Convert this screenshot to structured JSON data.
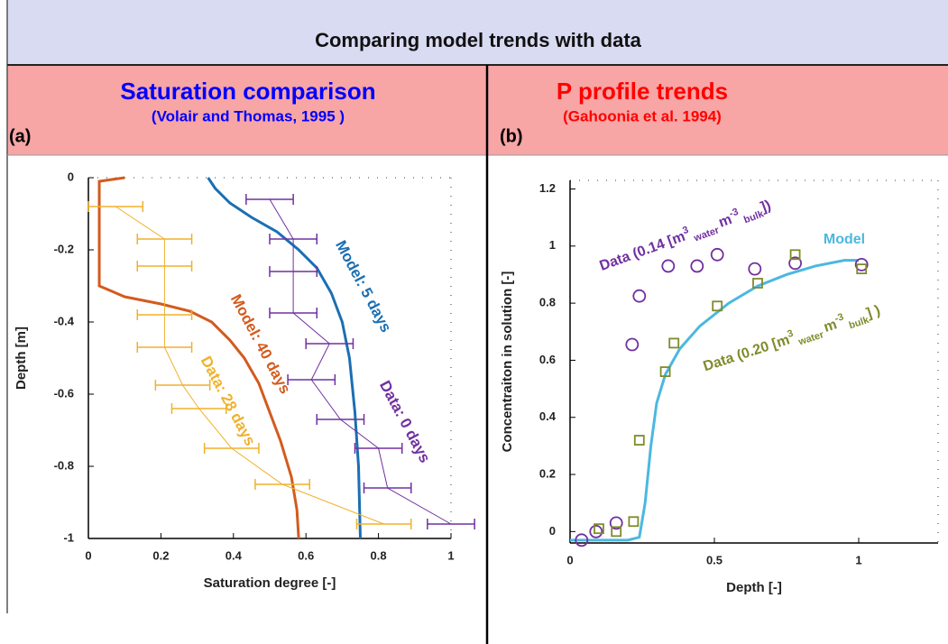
{
  "title": "Comparing model trends with data",
  "panels": [
    {
      "title": "Saturation comparison",
      "subtitle": "(Volair and Thomas, 1995 )",
      "tag": "(a)"
    },
    {
      "title": "P profile trends",
      "subtitle": "(Gahoonia et al. 1994)",
      "tag": "(b)"
    }
  ],
  "chart_data": [
    {
      "type": "line",
      "xlabel": "Saturation degree [-]",
      "ylabel": "Depth [m]",
      "xlim": [
        0,
        1
      ],
      "ylim": [
        -1,
        0
      ],
      "xticks": [
        0,
        0.2,
        0.4,
        0.6,
        0.8,
        1
      ],
      "yticks": [
        0,
        -0.2,
        -0.4,
        -0.6,
        -0.8,
        -1
      ],
      "series": [
        {
          "name": "Model: 40 days",
          "color": "#d35b1e",
          "line_width": 3,
          "x": [
            0.1,
            0.03,
            0.03,
            0.03,
            0.1,
            0.2,
            0.28,
            0.34,
            0.39,
            0.43,
            0.47,
            0.5,
            0.53,
            0.56,
            0.575,
            0.58
          ],
          "values": [
            0,
            -0.01,
            -0.15,
            -0.3,
            -0.33,
            -0.35,
            -0.37,
            -0.4,
            -0.45,
            -0.5,
            -0.57,
            -0.65,
            -0.73,
            -0.83,
            -0.92,
            -1.0
          ]
        },
        {
          "name": "Model: 5 days",
          "color": "#1b6fb3",
          "line_width": 3,
          "x": [
            0.33,
            0.35,
            0.39,
            0.45,
            0.52,
            0.58,
            0.63,
            0.67,
            0.7,
            0.72,
            0.735,
            0.745,
            0.75
          ],
          "values": [
            0,
            -0.03,
            -0.07,
            -0.11,
            -0.15,
            -0.2,
            -0.25,
            -0.32,
            -0.4,
            -0.5,
            -0.65,
            -0.8,
            -1.0
          ]
        },
        {
          "name": "Data: 28 days",
          "color": "#f0b12b",
          "line_width": 1,
          "x": [
            0.075,
            0.21,
            0.21,
            0.21,
            0.21,
            0.26,
            0.305,
            0.395,
            0.535,
            0.815
          ],
          "x_error": [
            0.075,
            0.075,
            0.075,
            0.075,
            0.075,
            0.075,
            0.075,
            0.075,
            0.075,
            0.075
          ],
          "values": [
            -0.08,
            -0.17,
            -0.245,
            -0.38,
            -0.47,
            -0.575,
            -0.64,
            -0.75,
            -0.85,
            -0.96
          ]
        },
        {
          "name": "Data: 0 days",
          "color": "#7030a0",
          "line_width": 1,
          "x": [
            0.5,
            0.565,
            0.565,
            0.565,
            0.665,
            0.615,
            0.695,
            0.8,
            0.825,
            1.0
          ],
          "x_error": [
            0.065,
            0.065,
            0.065,
            0.065,
            0.065,
            0.065,
            0.065,
            0.065,
            0.065,
            0.065
          ],
          "values": [
            -0.06,
            -0.17,
            -0.26,
            -0.375,
            -0.46,
            -0.56,
            -0.67,
            -0.75,
            -0.86,
            -0.96
          ]
        }
      ]
    },
    {
      "type": "line",
      "xlabel": "Depth [-]",
      "ylabel": "Concentraiton in solution [-]",
      "xlim": [
        0,
        1.275
      ],
      "ylim": [
        -0.04,
        1.23
      ],
      "xticks": [
        0,
        0.5,
        1
      ],
      "yticks": [
        0,
        0.2,
        0.4,
        0.6,
        0.8,
        1,
        1.2
      ],
      "series": [
        {
          "name": "Model",
          "color": "#4bb8e0",
          "line_width": 3,
          "x": [
            0,
            0.2,
            0.24,
            0.26,
            0.28,
            0.3,
            0.33,
            0.38,
            0.45,
            0.55,
            0.65,
            0.75,
            0.85,
            0.95,
            1.0
          ],
          "values": [
            -0.03,
            -0.03,
            -0.02,
            0.1,
            0.3,
            0.45,
            0.55,
            0.64,
            0.72,
            0.8,
            0.86,
            0.9,
            0.93,
            0.95,
            0.95
          ]
        },
        {
          "name_parts": [
            "Data (0.14 [m",
            "3",
            "water",
            "m",
            "-3",
            "bulk",
            "])"
          ],
          "color": "#7030a0",
          "line_width": 0,
          "marker": "circle",
          "x": [
            0.04,
            0.09,
            0.16,
            0.215,
            0.24,
            0.34,
            0.44,
            0.51,
            0.64,
            0.78,
            1.01
          ],
          "values": [
            -0.03,
            0.0,
            0.03,
            0.655,
            0.825,
            0.93,
            0.93,
            0.97,
            0.92,
            0.94,
            0.935
          ]
        },
        {
          "name_parts": [
            "Data (0.20 [m",
            "3",
            "water",
            "m",
            "-3",
            "bulk",
            "] )"
          ],
          "color": "#7f8b2a",
          "line_width": 0,
          "marker": "square",
          "x": [
            0.1,
            0.16,
            0.22,
            0.24,
            0.33,
            0.36,
            0.51,
            0.65,
            0.78,
            1.01
          ],
          "values": [
            0.01,
            0.0,
            0.035,
            0.32,
            0.56,
            0.66,
            0.79,
            0.87,
            0.97,
            0.92
          ]
        }
      ]
    }
  ]
}
